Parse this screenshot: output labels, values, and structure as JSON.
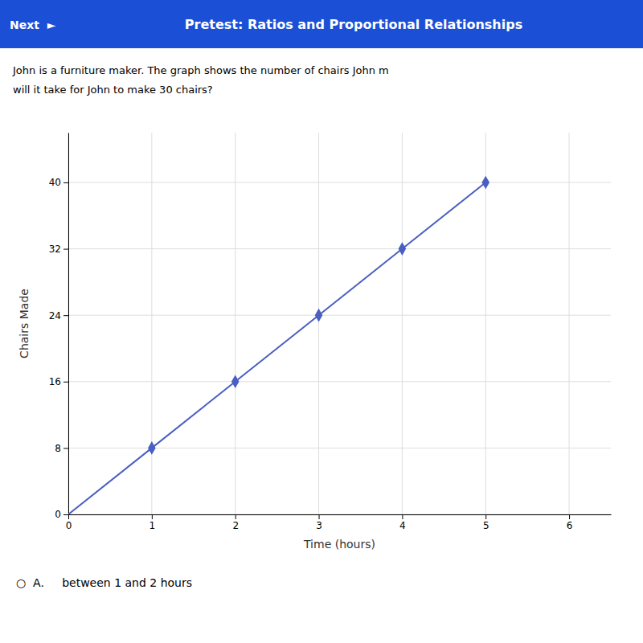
{
  "chart_data": {
    "type": "line",
    "title": "Pretest: Ratios and Proportional Relationships",
    "subtitle": "John is a furniture maker. The graph shows the number of chairs John m\nwill it take for John to make 30 chairs?",
    "annotations": [
      "Next  ►",
      "○  A.     between 1 and 2 hours"
    ],
    "x_label": "Time (hours)",
    "y_label": "Chairs Made",
    "series": [
      {
        "type": "line",
        "color": "#4a5fc1",
        "x": [
          0,
          1,
          2,
          3,
          4,
          5
        ],
        "values": [
          0,
          8,
          16,
          24,
          32,
          40
        ]
      },
      {
        "type": "scatter",
        "color": "#4a5fc1",
        "marker": "diamond",
        "x": [
          1,
          2,
          3,
          4,
          5
        ],
        "values": [
          8,
          16,
          24,
          32,
          40
        ]
      }
    ],
    "xlim": [
      0,
      6.5
    ],
    "ylim": [
      0,
      46
    ],
    "xticks": [
      0,
      1,
      2,
      3,
      4,
      5,
      6
    ],
    "yticks": [
      0,
      8,
      16,
      24,
      32,
      40
    ],
    "grid": true
  }
}
